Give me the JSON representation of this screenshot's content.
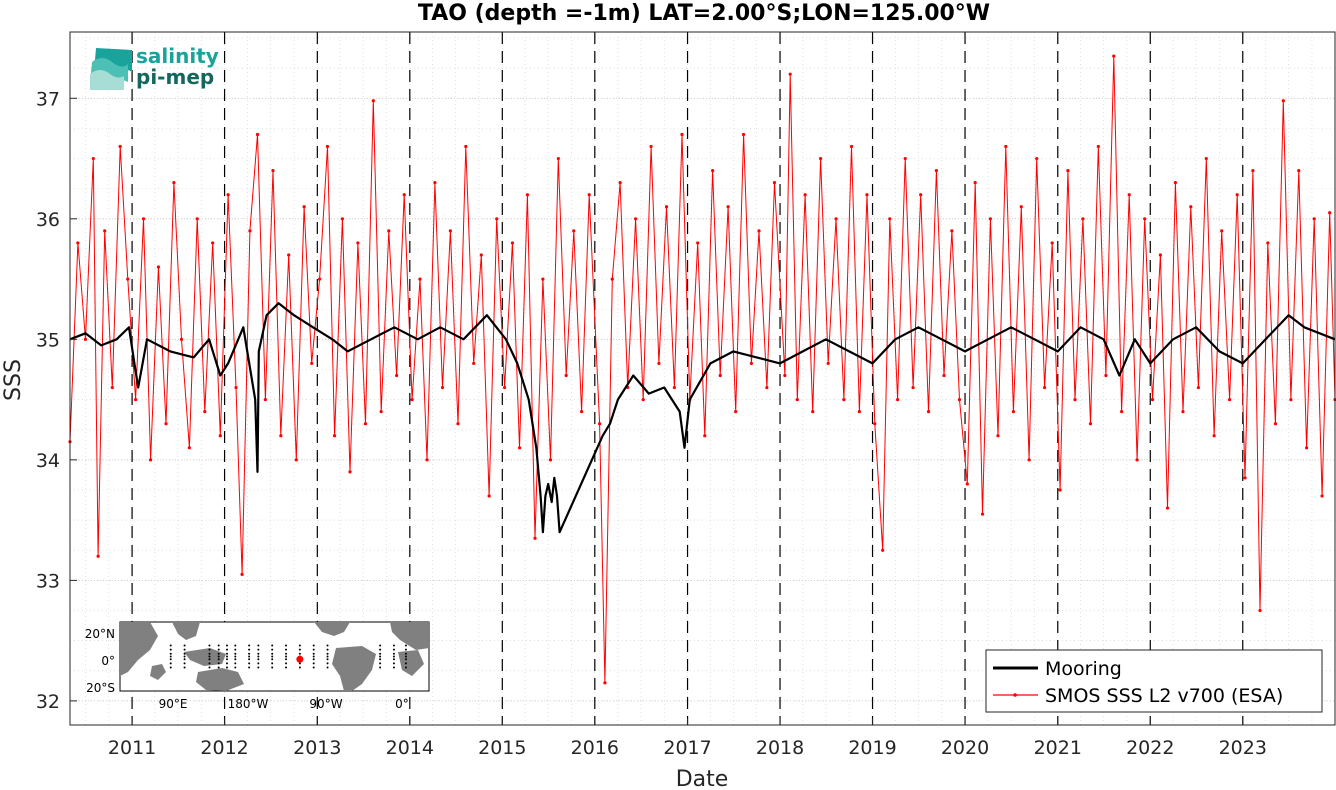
{
  "chart_data": {
    "type": "line",
    "title": "TAO (depth =-1m) LAT=2.00°S;LON=125.00°W",
    "xlabel": "Date",
    "ylabel": "SSS",
    "xlim": [
      "2010-05-01",
      "2023-12-31"
    ],
    "ylim": [
      31.8,
      37.55
    ],
    "xticks": [
      "2011",
      "2012",
      "2013",
      "2014",
      "2015",
      "2016",
      "2017",
      "2018",
      "2019",
      "2020",
      "2021",
      "2022",
      "2023"
    ],
    "yticks": [
      "32",
      "33",
      "34",
      "35",
      "36",
      "37"
    ],
    "grid": true,
    "year_markers": "dashed vertical lines at each January 1",
    "legend": {
      "placement": "bottom-right",
      "entries": [
        "Mooring",
        "SMOS SSS L2 v700 (ESA)"
      ]
    },
    "colors": {
      "mooring": "#000000",
      "smos": "#ff0000",
      "grid": "#cccccc"
    },
    "series": [
      {
        "name": "Mooring",
        "points": [
          [
            "2010-05-01",
            35.0
          ],
          [
            "2010-07-01",
            35.05
          ],
          [
            "2010-09-01",
            34.95
          ],
          [
            "2010-11-01",
            35.0
          ],
          [
            "2010-12-20",
            35.1
          ],
          [
            "2011-01-10",
            34.8
          ],
          [
            "2011-01-25",
            34.6
          ],
          [
            "2011-03-01",
            35.0
          ],
          [
            "2011-06-01",
            34.9
          ],
          [
            "2011-09-01",
            34.85
          ],
          [
            "2011-11-01",
            35.0
          ],
          [
            "2011-12-15",
            34.7
          ],
          [
            "2012-01-15",
            34.8
          ],
          [
            "2012-03-15",
            35.1
          ],
          [
            "2012-05-01",
            34.5
          ],
          [
            "2012-05-10",
            33.9
          ],
          [
            "2012-05-15",
            34.9
          ],
          [
            "2012-06-15",
            35.2
          ],
          [
            "2012-08-01",
            35.3
          ],
          [
            "2012-10-01",
            35.2
          ],
          [
            "2012-12-15",
            35.1
          ],
          [
            "2013-03-01",
            35.0
          ],
          [
            "2013-05-01",
            34.9
          ],
          [
            "2013-08-01",
            35.0
          ],
          [
            "2013-11-01",
            35.1
          ],
          [
            "2014-02-01",
            35.0
          ],
          [
            "2014-05-01",
            35.1
          ],
          [
            "2014-08-01",
            35.0
          ],
          [
            "2014-11-01",
            35.2
          ],
          [
            "2015-01-15",
            35.0
          ],
          [
            "2015-03-01",
            34.8
          ],
          [
            "2015-04-15",
            34.5
          ],
          [
            "2015-05-15",
            34.1
          ],
          [
            "2015-06-01",
            33.7
          ],
          [
            "2015-06-10",
            33.4
          ],
          [
            "2015-06-20",
            33.7
          ],
          [
            "2015-07-01",
            33.8
          ],
          [
            "2015-07-15",
            33.65
          ],
          [
            "2015-07-25",
            33.85
          ],
          [
            "2015-08-05",
            33.7
          ],
          [
            "2015-08-15",
            33.4
          ],
          [
            "2016-02-01",
            34.2
          ],
          [
            "2016-03-01",
            34.3
          ],
          [
            "2016-04-01",
            34.5
          ],
          [
            "2016-06-01",
            34.7
          ],
          [
            "2016-08-01",
            34.55
          ],
          [
            "2016-10-01",
            34.6
          ],
          [
            "2016-12-01",
            34.4
          ],
          [
            "2016-12-20",
            34.1
          ],
          [
            "2017-01-10",
            34.5
          ],
          [
            "2017-04-01",
            34.8
          ],
          [
            "2017-07-01",
            34.9
          ],
          [
            "2017-10-01",
            34.85
          ],
          [
            "2018-01-01",
            34.8
          ],
          [
            "2018-04-01",
            34.9
          ],
          [
            "2018-07-01",
            35.0
          ],
          [
            "2018-10-01",
            34.9
          ],
          [
            "2019-01-01",
            34.8
          ],
          [
            "2019-04-01",
            35.0
          ],
          [
            "2019-07-01",
            35.1
          ],
          [
            "2019-10-01",
            35.0
          ],
          [
            "2020-01-01",
            34.9
          ],
          [
            "2020-04-01",
            35.0
          ],
          [
            "2020-07-01",
            35.1
          ],
          [
            "2020-10-01",
            35.0
          ],
          [
            "2021-01-01",
            34.9
          ],
          [
            "2021-04-01",
            35.1
          ],
          [
            "2021-07-01",
            35.0
          ],
          [
            "2021-09-01",
            34.7
          ],
          [
            "2021-11-01",
            35.0
          ],
          [
            "2022-01-01",
            34.8
          ],
          [
            "2022-04-01",
            35.0
          ],
          [
            "2022-07-01",
            35.1
          ],
          [
            "2022-10-01",
            34.9
          ],
          [
            "2023-01-01",
            34.8
          ],
          [
            "2023-04-01",
            35.0
          ],
          [
            "2023-07-01",
            35.2
          ],
          [
            "2023-09-01",
            35.1
          ],
          [
            "2023-12-31",
            35.0
          ]
        ]
      },
      {
        "name": "SMOS SSS L2 v700 (ESA)",
        "points": [
          [
            "2010-05-01",
            34.15
          ],
          [
            "2010-06-01",
            35.8
          ],
          [
            "2010-07-01",
            35.0
          ],
          [
            "2010-08-01",
            36.5
          ],
          [
            "2010-08-20",
            33.2
          ],
          [
            "2010-09-15",
            35.9
          ],
          [
            "2010-10-15",
            34.6
          ],
          [
            "2010-11-15",
            36.6
          ],
          [
            "2010-12-15",
            35.5
          ],
          [
            "2011-01-15",
            34.5
          ],
          [
            "2011-02-15",
            36.0
          ],
          [
            "2011-03-15",
            34.0
          ],
          [
            "2011-04-15",
            35.6
          ],
          [
            "2011-05-15",
            34.3
          ],
          [
            "2011-06-15",
            36.3
          ],
          [
            "2011-07-15",
            35.0
          ],
          [
            "2011-08-15",
            34.1
          ],
          [
            "2011-09-15",
            36.0
          ],
          [
            "2011-10-15",
            34.4
          ],
          [
            "2011-11-15",
            35.8
          ],
          [
            "2011-12-15",
            34.2
          ],
          [
            "2012-01-15",
            36.2
          ],
          [
            "2012-02-15",
            34.6
          ],
          [
            "2012-03-10",
            33.05
          ],
          [
            "2012-04-10",
            35.9
          ],
          [
            "2012-05-10",
            36.7
          ],
          [
            "2012-06-10",
            34.5
          ],
          [
            "2012-07-10",
            36.4
          ],
          [
            "2012-08-10",
            34.2
          ],
          [
            "2012-09-10",
            35.7
          ],
          [
            "2012-10-10",
            34.0
          ],
          [
            "2012-11-10",
            36.1
          ],
          [
            "2012-12-10",
            34.8
          ],
          [
            "2013-01-10",
            35.5
          ],
          [
            "2013-02-10",
            36.6
          ],
          [
            "2013-03-10",
            34.2
          ],
          [
            "2013-04-10",
            36.0
          ],
          [
            "2013-05-10",
            33.9
          ],
          [
            "2013-06-10",
            35.8
          ],
          [
            "2013-07-10",
            34.3
          ],
          [
            "2013-08-10",
            36.98
          ],
          [
            "2013-09-10",
            34.4
          ],
          [
            "2013-10-10",
            35.9
          ],
          [
            "2013-11-10",
            34.7
          ],
          [
            "2013-12-10",
            36.2
          ],
          [
            "2014-01-10",
            34.5
          ],
          [
            "2014-02-10",
            35.5
          ],
          [
            "2014-03-10",
            34.0
          ],
          [
            "2014-04-10",
            36.3
          ],
          [
            "2014-05-10",
            34.6
          ],
          [
            "2014-06-10",
            35.9
          ],
          [
            "2014-07-10",
            34.3
          ],
          [
            "2014-08-10",
            36.6
          ],
          [
            "2014-09-10",
            34.8
          ],
          [
            "2014-10-10",
            35.7
          ],
          [
            "2014-11-10",
            33.7
          ],
          [
            "2014-12-10",
            36.0
          ],
          [
            "2015-01-10",
            34.6
          ],
          [
            "2015-02-10",
            35.8
          ],
          [
            "2015-03-10",
            34.1
          ],
          [
            "2015-04-10",
            36.2
          ],
          [
            "2015-05-10",
            33.35
          ],
          [
            "2015-06-10",
            35.5
          ],
          [
            "2015-07-10",
            34.0
          ],
          [
            "2015-08-10",
            36.5
          ],
          [
            "2015-09-10",
            34.7
          ],
          [
            "2015-10-10",
            35.9
          ],
          [
            "2015-11-10",
            34.4
          ],
          [
            "2015-12-10",
            36.2
          ],
          [
            "2016-01-20",
            34.3
          ],
          [
            "2016-02-10",
            32.15
          ],
          [
            "2016-03-10",
            35.5
          ],
          [
            "2016-04-10",
            36.3
          ],
          [
            "2016-05-10",
            34.6
          ],
          [
            "2016-06-10",
            36.0
          ],
          [
            "2016-07-10",
            34.5
          ],
          [
            "2016-08-10",
            36.6
          ],
          [
            "2016-09-10",
            34.8
          ],
          [
            "2016-10-10",
            36.1
          ],
          [
            "2016-11-10",
            34.6
          ],
          [
            "2016-12-10",
            36.7
          ],
          [
            "2017-01-10",
            34.5
          ],
          [
            "2017-02-10",
            35.8
          ],
          [
            "2017-03-10",
            34.2
          ],
          [
            "2017-04-10",
            36.4
          ],
          [
            "2017-05-10",
            34.7
          ],
          [
            "2017-06-10",
            36.1
          ],
          [
            "2017-07-10",
            34.4
          ],
          [
            "2017-08-10",
            36.7
          ],
          [
            "2017-09-10",
            34.8
          ],
          [
            "2017-10-10",
            35.9
          ],
          [
            "2017-11-10",
            34.6
          ],
          [
            "2017-12-10",
            36.3
          ],
          [
            "2018-01-20",
            34.7
          ],
          [
            "2018-02-10",
            37.2
          ],
          [
            "2018-03-10",
            34.5
          ],
          [
            "2018-04-10",
            36.2
          ],
          [
            "2018-05-10",
            34.4
          ],
          [
            "2018-06-10",
            36.5
          ],
          [
            "2018-07-10",
            34.8
          ],
          [
            "2018-08-10",
            36.0
          ],
          [
            "2018-09-10",
            34.5
          ],
          [
            "2018-10-10",
            36.6
          ],
          [
            "2018-11-10",
            34.4
          ],
          [
            "2018-12-10",
            36.2
          ],
          [
            "2019-01-10",
            34.3
          ],
          [
            "2019-02-10",
            33.25
          ],
          [
            "2019-03-10",
            36.0
          ],
          [
            "2019-04-10",
            34.5
          ],
          [
            "2019-05-10",
            36.5
          ],
          [
            "2019-06-10",
            34.6
          ],
          [
            "2019-07-10",
            36.2
          ],
          [
            "2019-08-10",
            34.4
          ],
          [
            "2019-09-10",
            36.4
          ],
          [
            "2019-10-10",
            34.7
          ],
          [
            "2019-11-10",
            35.9
          ],
          [
            "2019-12-10",
            34.5
          ],
          [
            "2020-01-10",
            33.8
          ],
          [
            "2020-02-10",
            36.3
          ],
          [
            "2020-03-10",
            33.55
          ],
          [
            "2020-04-10",
            36.0
          ],
          [
            "2020-05-10",
            34.2
          ],
          [
            "2020-06-10",
            36.6
          ],
          [
            "2020-07-10",
            34.4
          ],
          [
            "2020-08-10",
            36.1
          ],
          [
            "2020-09-10",
            34.0
          ],
          [
            "2020-10-10",
            36.5
          ],
          [
            "2020-11-10",
            34.6
          ],
          [
            "2020-12-10",
            35.8
          ],
          [
            "2021-01-10",
            33.75
          ],
          [
            "2021-02-10",
            36.4
          ],
          [
            "2021-03-10",
            34.5
          ],
          [
            "2021-04-10",
            36.0
          ],
          [
            "2021-05-10",
            34.3
          ],
          [
            "2021-06-10",
            36.6
          ],
          [
            "2021-07-10",
            34.7
          ],
          [
            "2021-08-10",
            37.35
          ],
          [
            "2021-09-10",
            34.4
          ],
          [
            "2021-10-10",
            36.2
          ],
          [
            "2021-11-10",
            34.0
          ],
          [
            "2021-12-10",
            36.0
          ],
          [
            "2022-01-10",
            34.5
          ],
          [
            "2022-02-10",
            35.7
          ],
          [
            "2022-03-10",
            33.6
          ],
          [
            "2022-04-10",
            36.3
          ],
          [
            "2022-05-10",
            34.4
          ],
          [
            "2022-06-10",
            36.1
          ],
          [
            "2022-07-10",
            34.6
          ],
          [
            "2022-08-10",
            36.5
          ],
          [
            "2022-09-10",
            34.2
          ],
          [
            "2022-10-10",
            35.9
          ],
          [
            "2022-11-10",
            34.5
          ],
          [
            "2022-12-10",
            36.2
          ],
          [
            "2023-01-10",
            33.85
          ],
          [
            "2023-02-10",
            36.4
          ],
          [
            "2023-03-10",
            32.75
          ],
          [
            "2023-04-10",
            35.8
          ],
          [
            "2023-05-10",
            34.3
          ],
          [
            "2023-06-10",
            36.98
          ],
          [
            "2023-07-10",
            34.5
          ],
          [
            "2023-08-10",
            36.4
          ],
          [
            "2023-09-10",
            34.1
          ],
          [
            "2023-10-10",
            36.0
          ],
          [
            "2023-11-10",
            33.7
          ],
          [
            "2023-12-10",
            36.05
          ],
          [
            "2023-12-31",
            34.5
          ]
        ]
      }
    ]
  },
  "logo": {
    "line1": "salinity",
    "line2": "pi-mep"
  },
  "inset_map": {
    "lat_labels": [
      "20°N",
      "0°",
      "20°S"
    ],
    "lon_labels": [
      "90°E",
      "180°W",
      "90°W",
      "0°"
    ],
    "site": {
      "lon": -125.0,
      "lat": -2.0
    },
    "colors": {
      "land": "#808080",
      "ocean": "#ffffff",
      "site": "#ff0000"
    }
  }
}
